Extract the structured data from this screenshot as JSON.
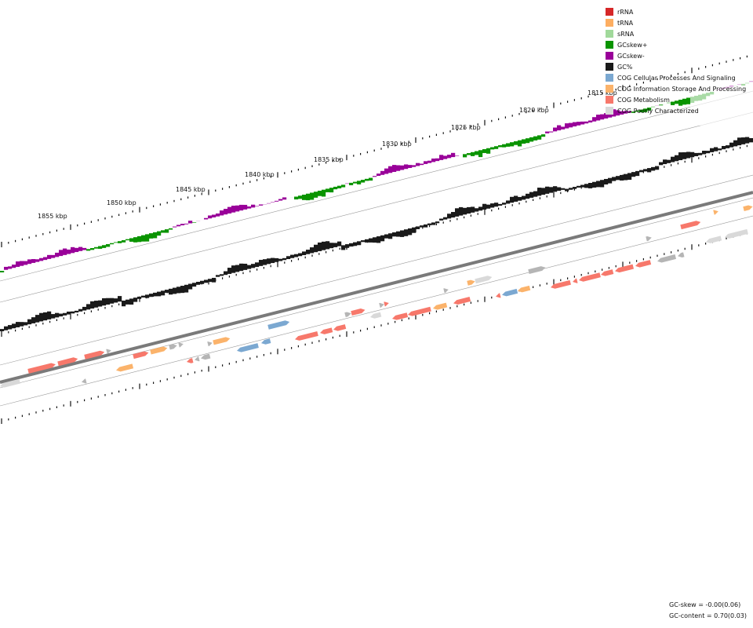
{
  "scale": {
    "labels": [
      "1815 kbp",
      "1820 kbp",
      "1825 kbp",
      "1830 kbp",
      "1835 kbp",
      "1840 kbp",
      "1845 kbp",
      "1850 kbp",
      "1855 kbp"
    ]
  },
  "legend": {
    "items": [
      {
        "label": "rRNA",
        "color": "#d62728"
      },
      {
        "label": "tRNA",
        "color": "#fdae61"
      },
      {
        "label": "sRNA",
        "color": "#a1d99b"
      },
      {
        "label": "GCskew+",
        "color": "#0a9400"
      },
      {
        "label": "GCskew-",
        "color": "#990099"
      },
      {
        "label": "GC%",
        "color": "#1a1a1a"
      },
      {
        "label": "COG Cellular Processes And Signaling",
        "color": "#7ba8d1"
      },
      {
        "label": "COG Information Storage And Processing",
        "color": "#fbb36b"
      },
      {
        "label": "COG Metabolism",
        "color": "#f7786b"
      },
      {
        "label": "COG Poorly Characterized",
        "color": "#d9d9d9"
      }
    ]
  },
  "stats": {
    "gc_skew": "GC-skew = -0.00(0.06)",
    "gc_content": "GC-content = 0.70(0.03)"
  }
}
